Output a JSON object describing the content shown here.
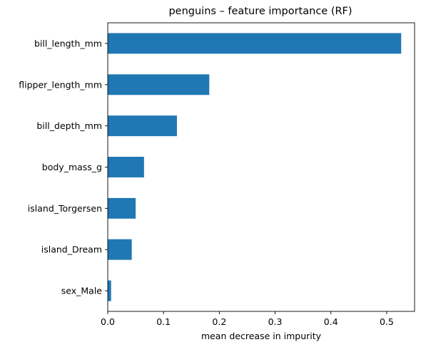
{
  "chart_data": {
    "type": "bar",
    "orientation": "horizontal",
    "title": "penguins – feature importance (RF)",
    "xlabel": "mean decrease in impurity",
    "ylabel": "",
    "categories": [
      "bill_length_mm",
      "flipper_length_mm",
      "bill_depth_mm",
      "body_mass_g",
      "island_Torgersen",
      "island_Dream",
      "sex_Male"
    ],
    "values": [
      0.526,
      0.182,
      0.124,
      0.065,
      0.05,
      0.043,
      0.006
    ],
    "xlim": [
      0,
      0.55
    ],
    "xticks": [
      "0.0",
      "0.1",
      "0.2",
      "0.3",
      "0.4",
      "0.5"
    ],
    "grid": false,
    "bar_color": "#1f77b4"
  }
}
